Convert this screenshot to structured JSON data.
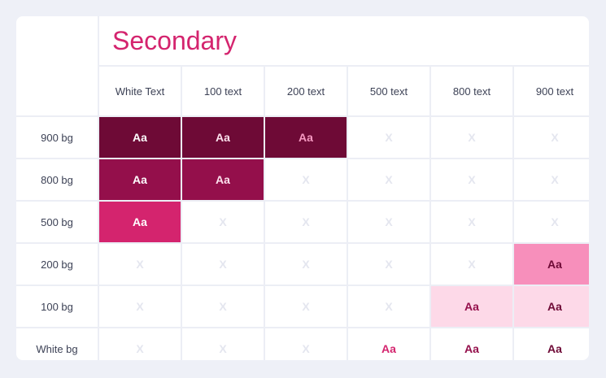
{
  "title": "Secondary",
  "columns": [
    "White Text",
    "100 text",
    "200 text",
    "500 text",
    "800 text",
    "900 text"
  ],
  "rows": [
    {
      "label": "900 bg",
      "cells": [
        {
          "text": "Aa",
          "bg": "#6e0a36",
          "fg": "#ffffff"
        },
        {
          "text": "Aa",
          "bg": "#6e0a36",
          "fg": "#fde2ee"
        },
        {
          "text": "Aa",
          "bg": "#6e0a36",
          "fg": "#f79ac2"
        },
        {
          "text": "X"
        },
        {
          "text": "X"
        },
        {
          "text": "X"
        }
      ]
    },
    {
      "label": "800 bg",
      "cells": [
        {
          "text": "Aa",
          "bg": "#940f4b",
          "fg": "#ffffff"
        },
        {
          "text": "Aa",
          "bg": "#940f4b",
          "fg": "#fde2ee"
        },
        {
          "text": "X"
        },
        {
          "text": "X"
        },
        {
          "text": "X"
        },
        {
          "text": "X"
        }
      ]
    },
    {
      "label": "500 bg",
      "cells": [
        {
          "text": "Aa",
          "bg": "#d4246e",
          "fg": "#ffffff"
        },
        {
          "text": "X"
        },
        {
          "text": "X"
        },
        {
          "text": "X"
        },
        {
          "text": "X"
        },
        {
          "text": "X"
        }
      ]
    },
    {
      "label": "200 bg",
      "cells": [
        {
          "text": "X"
        },
        {
          "text": "X"
        },
        {
          "text": "X"
        },
        {
          "text": "X"
        },
        {
          "text": "X"
        },
        {
          "text": "Aa",
          "bg": "#f78fbb",
          "fg": "#6e0a36"
        }
      ]
    },
    {
      "label": "100 bg",
      "cells": [
        {
          "text": "X"
        },
        {
          "text": "X"
        },
        {
          "text": "X"
        },
        {
          "text": "X"
        },
        {
          "text": "Aa",
          "bg": "#fdd9e8",
          "fg": "#940f4b"
        },
        {
          "text": "Aa",
          "bg": "#fdd9e8",
          "fg": "#6e0a36"
        }
      ]
    },
    {
      "label": "White bg",
      "cells": [
        {
          "text": "X"
        },
        {
          "text": "X"
        },
        {
          "text": "X"
        },
        {
          "text": "Aa",
          "fg": "#d4246e"
        },
        {
          "text": "Aa",
          "fg": "#940f4b"
        },
        {
          "text": "Aa",
          "fg": "#6e0a36"
        }
      ]
    }
  ],
  "colors": {
    "accent": "#d4246e",
    "x_mark": "#e4e6ef"
  }
}
